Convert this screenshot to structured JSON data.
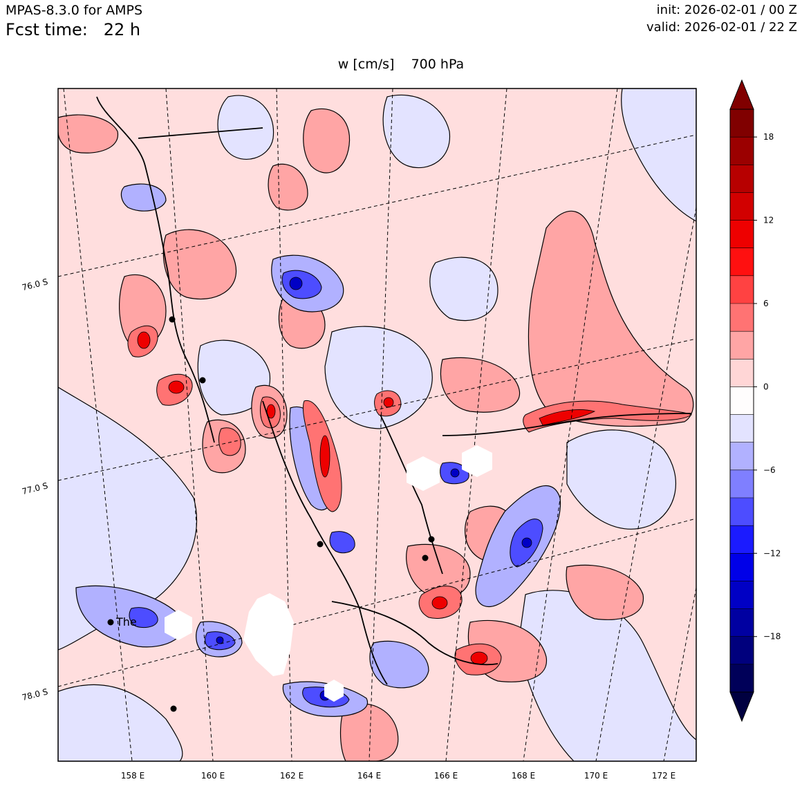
{
  "header": {
    "model": "MPAS-8.3.0 for AMPS",
    "fcst_time": "Fcst time:   22 h",
    "init": "init: 2026-02-01 / 00 Z",
    "valid": "valid: 2026-02-01 / 22 Z"
  },
  "plot": {
    "title": "w [cm/s]    700 hPa",
    "lon_labels": [
      "158 E",
      "160 E",
      "162 E",
      "164 E",
      "166 E",
      "168 E",
      "170 E",
      "172 E"
    ],
    "lat_labels": [
      "76.0 S",
      "77.0 S",
      "78.0 S"
    ],
    "station_label": "The"
  },
  "colorbar": {
    "ticks": [
      {
        "label": "18",
        "value": 18
      },
      {
        "label": "12",
        "value": 12
      },
      {
        "label": "6",
        "value": 6
      },
      {
        "label": "0",
        "value": 0
      },
      {
        "label": "−6",
        "value": -6
      },
      {
        "label": "−12",
        "value": -12
      },
      {
        "label": "−18",
        "value": -18
      }
    ],
    "levels_top_to_bottom": [
      {
        "value": 20,
        "color": "#800000"
      },
      {
        "value": 18,
        "color": "#9b0000"
      },
      {
        "value": 16,
        "color": "#b70000"
      },
      {
        "value": 14,
        "color": "#d20000"
      },
      {
        "value": 12,
        "color": "#ee0000"
      },
      {
        "value": 10,
        "color": "#ff1010"
      },
      {
        "value": 8,
        "color": "#ff4242"
      },
      {
        "value": 6,
        "color": "#ff7373"
      },
      {
        "value": 4,
        "color": "#ffa5a5"
      },
      {
        "value": 2,
        "color": "#ffd6d6"
      },
      {
        "value": 0,
        "color": "#fffdfd"
      },
      {
        "value": -2,
        "color": "#e3e3ff"
      },
      {
        "value": -4,
        "color": "#b1b1ff"
      },
      {
        "value": -6,
        "color": "#7f7fff"
      },
      {
        "value": -8,
        "color": "#4d4dff"
      },
      {
        "value": -10,
        "color": "#1b1bff"
      },
      {
        "value": -12,
        "color": "#0000e8"
      },
      {
        "value": -14,
        "color": "#0000c5"
      },
      {
        "value": -16,
        "color": "#0000a1"
      },
      {
        "value": -18,
        "color": "#00007d"
      },
      {
        "value": -20,
        "color": "#000059"
      }
    ],
    "over_color": "#800000",
    "under_color": "#000040"
  }
}
